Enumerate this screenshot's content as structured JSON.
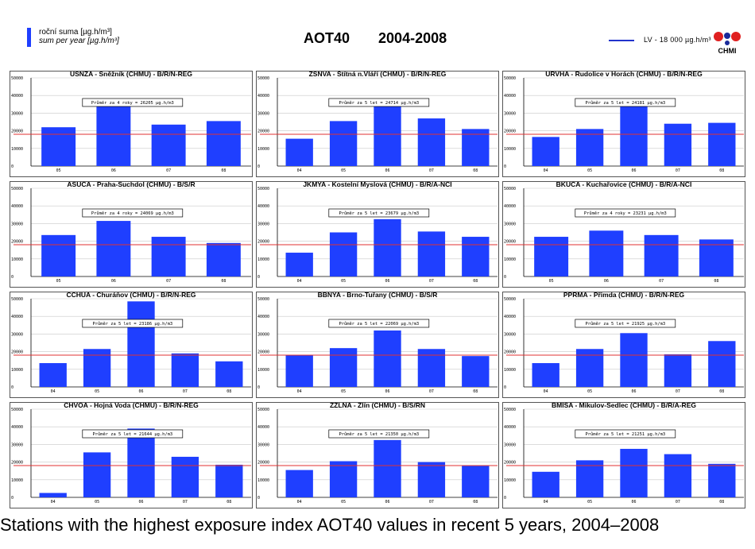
{
  "header": {
    "unit_label_cz": "roční suma [µg.h/m³]",
    "unit_label_en": "sum per year [µg.h/m³]",
    "title": "AOT40",
    "period": "2004-2008",
    "limit_legend": "LV  - 18 000 µg.h/m³",
    "logo_text": "CHMI",
    "bar_color": "#1f3fff",
    "limit_color": "#e03030"
  },
  "footer": {
    "caption": "Stations with the highest exposure index AOT40 values in recent 5 years, 2004–2008"
  },
  "chart_data": [
    {
      "type": "bar",
      "title": "USNZA - Sněžník (CHMU) - B/R/N-REG",
      "annotation": "Průměr za 4 roky = 26205 µg.h/m3",
      "categories": [
        "05",
        "06",
        "07",
        "08"
      ],
      "values": [
        22000,
        34500,
        23500,
        25500
      ],
      "ylim": [
        0,
        50000
      ],
      "yticks": [
        "0",
        "10000",
        "20000",
        "30000",
        "40000",
        "50000"
      ],
      "limit": 18000
    },
    {
      "type": "bar",
      "title": "ZSNVA - Štítná n.Vláří (CHMU) - B/R/N-REG",
      "annotation": "Průměr za 5 let = 24714 µg.h/m3",
      "categories": [
        "04",
        "05",
        "06",
        "07",
        "08"
      ],
      "values": [
        15500,
        25500,
        35500,
        27000,
        21000
      ],
      "ylim": [
        0,
        50000
      ],
      "yticks": [
        "0",
        "10000",
        "20000",
        "30000",
        "40000",
        "50000"
      ],
      "limit": 18000
    },
    {
      "type": "bar",
      "title": "URVHA - Rudolice v Horách (CHMU) - B/R/N-REG",
      "annotation": "Průměr za 5 let = 24181 µg.h/m3",
      "categories": [
        "04",
        "05",
        "06",
        "07",
        "08"
      ],
      "values": [
        16500,
        21000,
        35500,
        24000,
        24500
      ],
      "ylim": [
        0,
        50000
      ],
      "yticks": [
        "0",
        "10000",
        "20000",
        "30000",
        "40000",
        "50000"
      ],
      "limit": 18000
    },
    {
      "type": "bar",
      "title": "ASUCA - Praha-Suchdol (CHMU) - B/S/R",
      "annotation": "Průměr za 4 roky = 24069 µg.h/m3",
      "categories": [
        "05",
        "06",
        "07",
        "08"
      ],
      "values": [
        23500,
        31500,
        22500,
        19000
      ],
      "ylim": [
        0,
        50000
      ],
      "yticks": [
        "0",
        "10000",
        "20000",
        "30000",
        "40000",
        "50000"
      ],
      "limit": 18000
    },
    {
      "type": "bar",
      "title": "JKMYA - Kostelní Myslová (CHMU) - B/R/A-NCI",
      "annotation": "Průměr za 5 let = 23679 µg.h/m3",
      "categories": [
        "04",
        "05",
        "06",
        "07",
        "08"
      ],
      "values": [
        13500,
        25000,
        32500,
        25500,
        22500
      ],
      "ylim": [
        0,
        50000
      ],
      "yticks": [
        "0",
        "10000",
        "20000",
        "30000",
        "40000",
        "50000"
      ],
      "limit": 18000
    },
    {
      "type": "bar",
      "title": "BKUCA - Kuchařovice (CHMU) - B/R/A-NCI",
      "annotation": "Průměr za 4 roky = 23231 µg.h/m3",
      "categories": [
        "05",
        "06",
        "07",
        "08"
      ],
      "values": [
        22500,
        26000,
        23500,
        21000
      ],
      "ylim": [
        0,
        50000
      ],
      "yticks": [
        "0",
        "10000",
        "20000",
        "30000",
        "40000",
        "50000"
      ],
      "limit": 18000
    },
    {
      "type": "bar",
      "title": "CCHUA - Churáňov (CHMU) - B/R/N-REG",
      "annotation": "Průměr za 5 let = 23186 µg.h/m3",
      "categories": [
        "04",
        "05",
        "06",
        "07",
        "08"
      ],
      "values": [
        13500,
        21500,
        48500,
        19000,
        14500
      ],
      "ylim": [
        0,
        50000
      ],
      "yticks": [
        "0",
        "10000",
        "20000",
        "30000",
        "40000",
        "50000"
      ],
      "limit": 18000
    },
    {
      "type": "bar",
      "title": "BBNYA - Brno-Tuřany (CHMU) - B/S/R",
      "annotation": "Průměr za 5 let = 22069 µg.h/m3",
      "categories": [
        "04",
        "05",
        "06",
        "07",
        "08"
      ],
      "values": [
        18000,
        22000,
        32000,
        21500,
        17500
      ],
      "ylim": [
        0,
        50000
      ],
      "yticks": [
        "0",
        "10000",
        "20000",
        "30000",
        "40000",
        "50000"
      ],
      "limit": 18000
    },
    {
      "type": "bar",
      "title": "PPRMA - Přimda (CHMU) - B/R/N-REG",
      "annotation": "Průměr za 5 let = 21925 µg.h/m3",
      "categories": [
        "04",
        "05",
        "06",
        "07",
        "08"
      ],
      "values": [
        13500,
        21500,
        30500,
        18500,
        26000
      ],
      "ylim": [
        0,
        50000
      ],
      "yticks": [
        "0",
        "10000",
        "20000",
        "30000",
        "40000",
        "50000"
      ],
      "limit": 18000
    },
    {
      "type": "bar",
      "title": "CHVOA - Hojná Voda (CHMU) - B/R/N-REG",
      "annotation": "Průměr za 5 let = 21644 µg.h/m3",
      "categories": [
        "04",
        "05",
        "06",
        "07",
        "08"
      ],
      "values": [
        2500,
        25500,
        39000,
        23000,
        18500
      ],
      "ylim": [
        0,
        50000
      ],
      "yticks": [
        "0",
        "10000",
        "20000",
        "30000",
        "40000",
        "50000"
      ],
      "limit": 18000
    },
    {
      "type": "bar",
      "title": "ZZLNA - Zlín (CHMU) - B/S/RN",
      "annotation": "Průměr za 5 let = 21350 µg.h/m3",
      "categories": [
        "04",
        "05",
        "06",
        "07",
        "08"
      ],
      "values": [
        15500,
        20500,
        32500,
        20000,
        18000
      ],
      "ylim": [
        0,
        50000
      ],
      "yticks": [
        "0",
        "10000",
        "20000",
        "30000",
        "40000",
        "50000"
      ],
      "limit": 18000
    },
    {
      "type": "bar",
      "title": "BMISA - Mikulov-Sedlec (CHMU) - B/R/A-REG",
      "annotation": "Průměr za 5 let = 21251 µg.h/m3",
      "categories": [
        "04",
        "05",
        "06",
        "07",
        "08"
      ],
      "values": [
        14500,
        21000,
        27500,
        24500,
        19000
      ],
      "ylim": [
        0,
        50000
      ],
      "yticks": [
        "0",
        "10000",
        "20000",
        "30000",
        "40000",
        "50000"
      ],
      "limit": 18000
    }
  ]
}
